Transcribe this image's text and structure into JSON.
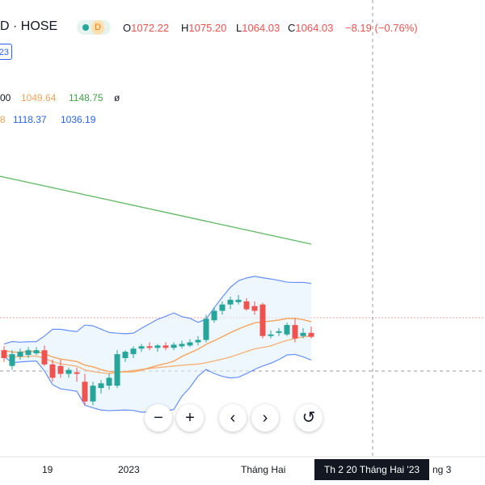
{
  "header": {
    "symbol": "D · HOSE",
    "interval_badge": "D",
    "open_label": "O",
    "open": "1072.22",
    "high_label": "H",
    "high": "1075.20",
    "low_label": "L",
    "low": "1064.03",
    "close_label": "C",
    "close": "1064.03",
    "change": "−8.19 (−0.76%)",
    "badge_text": "23"
  },
  "indicators": {
    "ma_row": {
      "v0": "00",
      "v1": "1049.64",
      "v2": "1148.75",
      "v3": "ø"
    },
    "bb_row": {
      "v0": "8",
      "v1": "1118.37",
      "v2": "1036.19"
    }
  },
  "time_axis": {
    "tick1": "19",
    "tick2": "2023",
    "tick3": "Tháng Hai",
    "tick4": "ng 3"
  },
  "crosshair_label": "Th 2 20 Tháng Hai '23",
  "controls": {
    "zoom_out": "−",
    "zoom_in": "+",
    "scroll_left": "‹",
    "scroll_right": "›",
    "reset": "↺"
  },
  "colors": {
    "up": "#26a69a",
    "down": "#ef5350",
    "ma_orange": "#f7a35c",
    "ma_green": "#66bb6a",
    "bb_blue": "#2962ff",
    "bb_fill": "#e3f2fd"
  },
  "chart_data": {
    "type": "candlestick",
    "candles": [
      {
        "o": 1020,
        "h": 1035,
        "l": 1015,
        "c": 1030,
        "dir": "down"
      },
      {
        "o": 1010,
        "h": 1030,
        "l": 1005,
        "c": 1025,
        "dir": "up"
      },
      {
        "o": 1022,
        "h": 1032,
        "l": 1018,
        "c": 1028,
        "dir": "up"
      },
      {
        "o": 1024,
        "h": 1034,
        "l": 1020,
        "c": 1030,
        "dir": "up"
      },
      {
        "o": 1026,
        "h": 1034,
        "l": 1024,
        "c": 1030,
        "dir": "up"
      },
      {
        "o": 1030,
        "h": 1036,
        "l": 1010,
        "c": 1012,
        "dir": "down"
      },
      {
        "o": 1012,
        "h": 1018,
        "l": 990,
        "c": 995,
        "dir": "down"
      },
      {
        "o": 1010,
        "h": 1018,
        "l": 995,
        "c": 1000,
        "dir": "down"
      },
      {
        "o": 1000,
        "h": 1008,
        "l": 995,
        "c": 1005,
        "dir": "up"
      },
      {
        "o": 1000,
        "h": 1008,
        "l": 990,
        "c": 1002,
        "dir": "down"
      },
      {
        "o": 990,
        "h": 1000,
        "l": 960,
        "c": 965,
        "dir": "down"
      },
      {
        "o": 965,
        "h": 990,
        "l": 960,
        "c": 985,
        "dir": "up"
      },
      {
        "o": 982,
        "h": 992,
        "l": 975,
        "c": 988,
        "dir": "up"
      },
      {
        "o": 985,
        "h": 1000,
        "l": 980,
        "c": 995,
        "dir": "up"
      },
      {
        "o": 985,
        "h": 1030,
        "l": 982,
        "c": 1025,
        "dir": "up"
      },
      {
        "o": 1020,
        "h": 1030,
        "l": 1015,
        "c": 1028,
        "dir": "up"
      },
      {
        "o": 1025,
        "h": 1035,
        "l": 1020,
        "c": 1032,
        "dir": "up"
      },
      {
        "o": 1032,
        "h": 1038,
        "l": 1028,
        "c": 1035,
        "dir": "up"
      },
      {
        "o": 1035,
        "h": 1040,
        "l": 1030,
        "c": 1033,
        "dir": "down"
      },
      {
        "o": 1033,
        "h": 1038,
        "l": 1028,
        "c": 1036,
        "dir": "up"
      },
      {
        "o": 1036,
        "h": 1040,
        "l": 1030,
        "c": 1033,
        "dir": "down"
      },
      {
        "o": 1033,
        "h": 1040,
        "l": 1030,
        "c": 1037,
        "dir": "up"
      },
      {
        "o": 1035,
        "h": 1042,
        "l": 1032,
        "c": 1038,
        "dir": "up"
      },
      {
        "o": 1036,
        "h": 1044,
        "l": 1034,
        "c": 1040,
        "dir": "up"
      },
      {
        "o": 1040,
        "h": 1048,
        "l": 1036,
        "c": 1043,
        "dir": "up"
      },
      {
        "o": 1043,
        "h": 1075,
        "l": 1040,
        "c": 1070,
        "dir": "up"
      },
      {
        "o": 1068,
        "h": 1085,
        "l": 1065,
        "c": 1080,
        "dir": "up"
      },
      {
        "o": 1080,
        "h": 1092,
        "l": 1075,
        "c": 1088,
        "dir": "up"
      },
      {
        "o": 1088,
        "h": 1098,
        "l": 1082,
        "c": 1094,
        "dir": "up"
      },
      {
        "o": 1094,
        "h": 1100,
        "l": 1088,
        "c": 1091,
        "dir": "up"
      },
      {
        "o": 1092,
        "h": 1096,
        "l": 1080,
        "c": 1082,
        "dir": "down"
      },
      {
        "o": 1086,
        "h": 1092,
        "l": 1075,
        "c": 1080,
        "dir": "down"
      },
      {
        "o": 1088,
        "h": 1090,
        "l": 1045,
        "c": 1048,
        "dir": "down"
      },
      {
        "o": 1048,
        "h": 1055,
        "l": 1045,
        "c": 1050,
        "dir": "up"
      },
      {
        "o": 1052,
        "h": 1058,
        "l": 1048,
        "c": 1054,
        "dir": "up"
      },
      {
        "o": 1050,
        "h": 1065,
        "l": 1048,
        "c": 1062,
        "dir": "up"
      },
      {
        "o": 1062,
        "h": 1070,
        "l": 1040,
        "c": 1045,
        "dir": "down"
      },
      {
        "o": 1048,
        "h": 1058,
        "l": 1045,
        "c": 1052,
        "dir": "up"
      },
      {
        "o": 1052,
        "h": 1060,
        "l": 1045,
        "c": 1047,
        "dir": "down"
      }
    ],
    "ylim": [
      900,
      1300
    ]
  }
}
